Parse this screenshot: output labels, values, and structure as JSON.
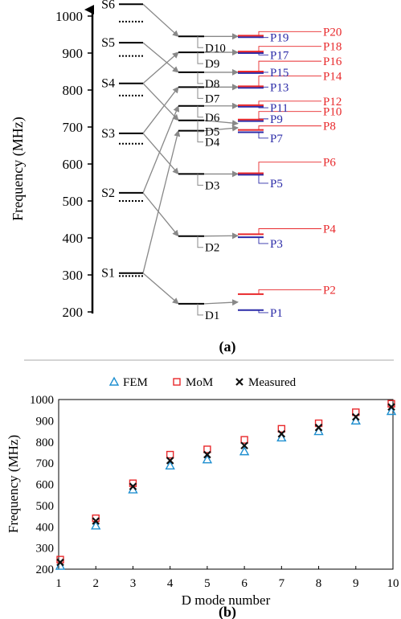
{
  "panel_a": {
    "caption": "(a)",
    "ylabel": "Frequency (MHz)",
    "yticks": [
      200,
      300,
      400,
      500,
      600,
      700,
      800,
      900,
      1000
    ],
    "ylim": [
      185,
      1040
    ],
    "colors": {
      "black": "#000000",
      "gray": "#888888",
      "red": "#e8282b",
      "blue": "#2b2ba8"
    },
    "s_levels": [
      {
        "label": "S1",
        "solid": 305,
        "dotted": 297
      },
      {
        "label": "S2",
        "solid": 522,
        "dotted": 500
      },
      {
        "label": "S3",
        "solid": 683,
        "dotted": 655
      },
      {
        "label": "S4",
        "solid": 818,
        "dotted": 785
      },
      {
        "label": "S5",
        "solid": 928,
        "dotted": 892
      },
      {
        "label": "S6",
        "solid": 1032,
        "dotted": 985
      }
    ],
    "d_levels": [
      {
        "label": "D1",
        "f": 222,
        "from": [
          "S1"
        ]
      },
      {
        "label": "D2",
        "f": 405,
        "from": [
          "S2"
        ]
      },
      {
        "label": "D3",
        "f": 573,
        "from": [
          "S3"
        ]
      },
      {
        "label": "D4",
        "f": 690,
        "from": [
          "S1"
        ]
      },
      {
        "label": "D5",
        "f": 718,
        "from": [
          "S4"
        ]
      },
      {
        "label": "D6",
        "f": 757,
        "from": [
          "S2"
        ]
      },
      {
        "label": "D7",
        "f": 808,
        "from": [
          "S3"
        ]
      },
      {
        "label": "D8",
        "f": 848,
        "from": [
          "S5"
        ]
      },
      {
        "label": "D9",
        "f": 902,
        "from": [
          "S4"
        ]
      },
      {
        "label": "D10",
        "f": 945,
        "from": [
          "S6"
        ]
      }
    ],
    "p_levels": [
      {
        "label": "P1",
        "f": 205,
        "color": "blue"
      },
      {
        "label": "P2",
        "f": 248,
        "color": "red"
      },
      {
        "label": "P3",
        "f": 402,
        "color": "blue"
      },
      {
        "label": "P4",
        "f": 410,
        "color": "red"
      },
      {
        "label": "P5",
        "f": 571,
        "color": "blue"
      },
      {
        "label": "P6",
        "f": 575,
        "color": "red"
      },
      {
        "label": "P7",
        "f": 686,
        "color": "blue"
      },
      {
        "label": "P8",
        "f": 692,
        "color": "red"
      },
      {
        "label": "P9",
        "f": 716,
        "color": "blue"
      },
      {
        "label": "P10",
        "f": 720,
        "color": "red"
      },
      {
        "label": "P11",
        "f": 755,
        "color": "blue"
      },
      {
        "label": "P12",
        "f": 759,
        "color": "red"
      },
      {
        "label": "P13",
        "f": 806,
        "color": "blue"
      },
      {
        "label": "P14",
        "f": 810,
        "color": "red"
      },
      {
        "label": "P15",
        "f": 846,
        "color": "blue"
      },
      {
        "label": "P16",
        "f": 850,
        "color": "red"
      },
      {
        "label": "P17",
        "f": 900,
        "color": "blue"
      },
      {
        "label": "P18",
        "f": 904,
        "color": "red"
      },
      {
        "label": "P19",
        "f": 943,
        "color": "blue"
      },
      {
        "label": "P20",
        "f": 947,
        "color": "red"
      }
    ],
    "p_label_f": {
      "P1": 198,
      "P2": 260,
      "P3": 385,
      "P4": 425,
      "P5": 548,
      "P6": 605,
      "P7": 670,
      "P8": 703,
      "P9": 722,
      "P10": 742,
      "P11": 752,
      "P12": 770,
      "P13": 808,
      "P14": 838,
      "P15": 848,
      "P16": 878,
      "P17": 895,
      "P18": 918,
      "P19": 942,
      "P20": 958
    }
  },
  "chart_data": {
    "type": "scatter",
    "caption": "(b)",
    "xlabel": "D mode number",
    "ylabel": "Frequency (MHz)",
    "xlim": [
      1,
      10
    ],
    "ylim": [
      200,
      1000
    ],
    "xticks": [
      1,
      2,
      3,
      4,
      5,
      6,
      7,
      8,
      9,
      10
    ],
    "yticks": [
      200,
      300,
      400,
      500,
      600,
      700,
      800,
      900,
      1000
    ],
    "legend_position": "top",
    "series": [
      {
        "name": "FEM",
        "marker": "triangle",
        "color": "#1e8fd0",
        "x": [
          1,
          2,
          3,
          4,
          5,
          6,
          7,
          8,
          9,
          10
        ],
        "y": [
          215,
          405,
          575,
          688,
          717,
          755,
          820,
          850,
          900,
          945
        ]
      },
      {
        "name": "MoM",
        "marker": "square",
        "color": "#e8282b",
        "x": [
          1,
          2,
          3,
          4,
          5,
          6,
          7,
          8,
          9,
          10
        ],
        "y": [
          245,
          440,
          605,
          740,
          765,
          810,
          862,
          888,
          940,
          980
        ]
      },
      {
        "name": "Measured",
        "marker": "x",
        "color": "#111111",
        "x": [
          1,
          2,
          3,
          4,
          5,
          6,
          7,
          8,
          9,
          10
        ],
        "y": [
          232,
          427,
          590,
          712,
          740,
          783,
          838,
          868,
          918,
          965
        ]
      }
    ]
  }
}
